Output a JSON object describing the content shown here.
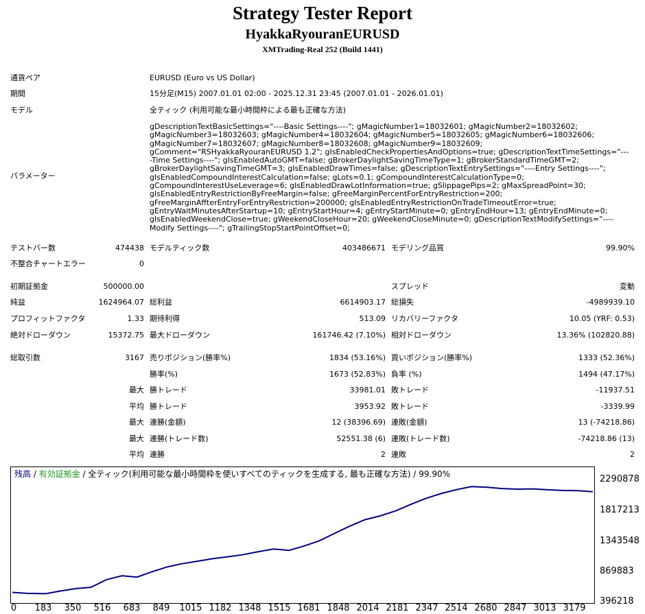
{
  "header": {
    "title": "Strategy Tester Report",
    "ea_name": "HyakkaRyouranEURUSD",
    "server": "XMTrading-Real 252 (Build 1441)"
  },
  "info": {
    "symbol_label": "通貨ペア",
    "symbol_value": "EURUSD (Euro vs US Dollar)",
    "period_label": "期間",
    "period_value": "15分足(M15) 2007.01.01 02:00 - 2025.12.31 23:45 (2007.01.01 - 2026.01.01)",
    "model_label": "モデル",
    "model_value": "全ティック (利用可能な最小時間枠による最も正確な方法)",
    "params_label": "パラメーター",
    "params_value": "gDescriptionTextBasicSettings=\"----Basic Settings----\"; gMagicNumber1=18032601; gMagicNumber2=18032602; gMagicNumber3=18032603; gMagicNumber4=18032604; gMagicNumber5=18032605; gMagicNumber6=18032606; gMagicNumber7=18032607; gMagicNumber8=18032608; gMagicNumber9=18032609; gComment=\"RSHyakkaRyouranEURUSD 1.2\"; gIsEnabledCheckPropertiesAndOptions=true; gDescriptionTextTimeSettings=\"----Time Settings----\"; gIsEnabledAutoGMT=false; gBrokerDaylightSavingTimeType=1; gBrokerStandardTimeGMT=2; gBrokerDaylightSavingTimeGMT=3; gIsEnabledDrawTimes=false; gDescriptionTextEntrySettings=\"----Entry Settings----\"; gIsEnabledCompoundInterestCalculation=false; gLots=0.1; gCompoundInterestCalculationType=0; gCompoundInterestUseLeverage=6; gIsEnabledDrawLotInformation=true; gSlippagePips=2; gMaxSpreadPoint=30; gIsEnabledEntryRestrictionByFreeMargin=false; gFreeMarginPercentForEntryRestriction=200; gFreeMarginAffterEntryForEntryRestriction=200000; gIsEnabledEntryRestrictionOnTradeTimeoutError=true; gEntryWaitMinutesAfterStartup=10; gEntryStartHour=4; gEntryStartMinute=0; gEntryEndHour=13; gEntryEndMinute=0; gIsEnabledWeekendClose=true; gWeekendCloseHour=20; gWeekendCloseMinute=0; gDescriptionTextModifySettings=\"----Modify Settings----\"; gTrailingStopStartPointOffset=0;"
  },
  "stats": {
    "bars_label": "テストバー数",
    "bars_value": "474438",
    "ticks_label": "モデルティック数",
    "ticks_value": "403486671",
    "quality_label": "モデリング品質",
    "quality_value": "99.90%",
    "mismatch_label": "不整合チャートエラー",
    "mismatch_value": "0",
    "deposit_label": "初期証拠金",
    "deposit_value": "500000.00",
    "spread_label": "スプレッド",
    "spread_value": "変動",
    "net_label": "純益",
    "net_value": "1624964.07",
    "gross_profit_label": "総利益",
    "gross_profit_value": "6614903.17",
    "gross_loss_label": "総損失",
    "gross_loss_value": "-4989939.10",
    "pf_label": "プロフィットファクタ",
    "pf_value": "1.33",
    "expected_label": "期待利得",
    "expected_value": "513.09",
    "recovery_label": "リカバリーファクタ",
    "recovery_value": "10.05 (YRF: 0.53)",
    "abs_dd_label": "絶対ドローダウン",
    "abs_dd_value": "15372.75",
    "max_dd_label": "最大ドローダウン",
    "max_dd_value": "161746.42 (7.10%)",
    "rel_dd_label": "相対ドローダウン",
    "rel_dd_value": "13.36% (102820.88)",
    "total_trades_label": "総取引数",
    "total_trades_value": "3167",
    "short_label": "売りポジション(勝率%)",
    "short_value": "1834 (53.16%)",
    "long_label": "買いポジション(勝率%)",
    "long_value": "1333 (52.36%)",
    "winrate_label": "勝率(%)",
    "winrate_value": "1673 (52.83%)",
    "lossrate_label": "負率 (%)",
    "lossrate_value": "1494 (47.17%)",
    "max_word": "最大",
    "avg_word": "平均",
    "largest_win_label": "勝トレード",
    "largest_win_value": "33981.01",
    "largest_loss_label": "敗トレード",
    "largest_loss_value": "-11937.51",
    "avg_win_label": "勝トレード",
    "avg_win_value": "3953.92",
    "avg_loss_label": "敗トレード",
    "avg_loss_value": "-3339.99",
    "max_consec_win_amt_label": "連勝(金額)",
    "max_consec_win_amt_value": "12 (38396.69)",
    "max_consec_loss_amt_label": "連敗(金額)",
    "max_consec_loss_amt_value": "13 (-74218.86)",
    "max_consec_win_cnt_label": "連勝(トレード数)",
    "max_consec_win_cnt_value": "52551.38 (6)",
    "max_consec_loss_cnt_label": "連敗(トレード数)",
    "max_consec_loss_cnt_value": "-74218.86 (13)",
    "avg_consec_win_label": "連勝",
    "avg_consec_win_value": "2",
    "avg_consec_loss_label": "連敗",
    "avg_consec_loss_value": "2"
  },
  "chart_data": {
    "type": "line",
    "legend_balance": "残高",
    "legend_sep": " / ",
    "legend_equity": "有効証拠金",
    "legend_rest": " / 全ティック(利用可能な最小時間枠を使いすべてのティックを生成する, 最も正確な方法) / 99.90%",
    "y_ticks": [
      "2290878",
      "1817213",
      "1343548",
      "869883",
      "396218"
    ],
    "x_ticks": [
      "0",
      "183",
      "350",
      "516",
      "683",
      "849",
      "1015",
      "1182",
      "1348",
      "1515",
      "1681",
      "1848",
      "2014",
      "2181",
      "2347",
      "2514",
      "2680",
      "2847",
      "3013",
      "3179"
    ],
    "ylim": [
      396218,
      2290878
    ],
    "xlim": [
      0,
      3179
    ],
    "colors": {
      "balance": "#00007f",
      "equity": "#1e9a1e"
    },
    "series": [
      {
        "name": "残高",
        "x": [
          0,
          80,
          183,
          260,
          350,
          430,
          516,
          600,
          683,
          760,
          849,
          930,
          1015,
          1100,
          1182,
          1260,
          1348,
          1430,
          1515,
          1600,
          1681,
          1760,
          1848,
          1930,
          2014,
          2100,
          2181,
          2260,
          2347,
          2430,
          2514,
          2600,
          2680,
          2760,
          2847,
          2930,
          3013,
          3100,
          3179
        ],
        "values": [
          520000,
          505000,
          500000,
          540000,
          580000,
          600000,
          720000,
          780000,
          760000,
          840000,
          920000,
          970000,
          1010000,
          1050000,
          1080000,
          1110000,
          1160000,
          1200000,
          1180000,
          1250000,
          1330000,
          1440000,
          1560000,
          1660000,
          1720000,
          1800000,
          1900000,
          1990000,
          2070000,
          2130000,
          2180000,
          2170000,
          2150000,
          2140000,
          2145000,
          2130000,
          2120000,
          2115000,
          2100000
        ]
      }
    ]
  }
}
